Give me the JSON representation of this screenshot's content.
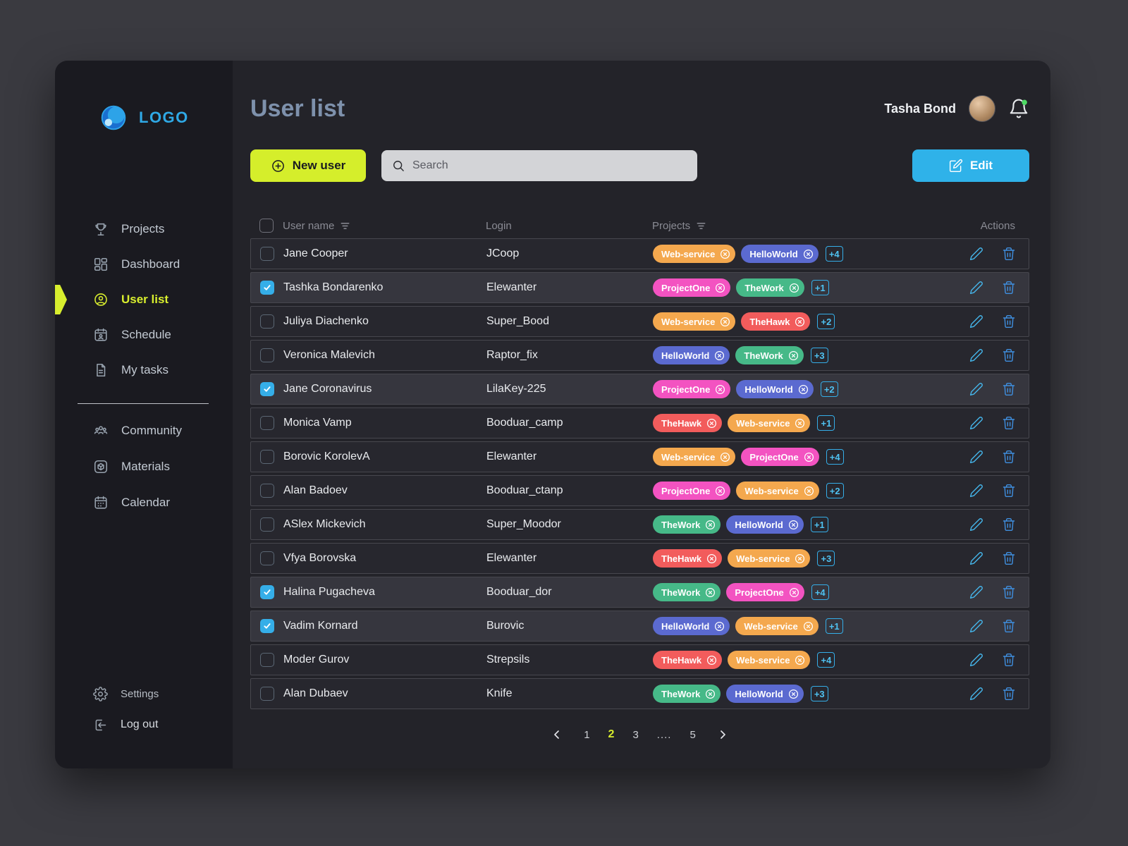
{
  "colors": {
    "accent_lime": "#d8ee2e",
    "accent_cyan": "#2fb2e9",
    "notification_dot": "#4ed964"
  },
  "sidebar": {
    "logo_text": "LOGO",
    "items": [
      {
        "label": "Projects",
        "icon": "trophy-icon"
      },
      {
        "label": "Dashboard",
        "icon": "dashboard-icon"
      },
      {
        "label": "User list",
        "icon": "user-icon",
        "active": true
      },
      {
        "label": "Schedule",
        "icon": "schedule-icon"
      },
      {
        "label": "My tasks",
        "icon": "tasks-icon"
      }
    ],
    "secondary": [
      {
        "label": "Community",
        "icon": "community-icon"
      },
      {
        "label": "Materials",
        "icon": "materials-icon"
      },
      {
        "label": "Calendar",
        "icon": "calendar-icon"
      }
    ],
    "footer": [
      {
        "label": "Settings",
        "icon": "gear-icon"
      },
      {
        "label": "Log out",
        "icon": "logout-icon"
      }
    ]
  },
  "header": {
    "title": "User list",
    "user_name": "Tasha Bond"
  },
  "toolbar": {
    "new_user": "New user",
    "search_placeholder": "Search",
    "edit": "Edit"
  },
  "table": {
    "columns": {
      "name": "User name",
      "login": "Login",
      "projects": "Projects",
      "actions": "Actions"
    },
    "tag_colors": {
      "Web-service": "#f4a84e",
      "HelloWorld": "#5b6ad0",
      "ProjectOne": "#f353c1",
      "TheWork": "#46b988",
      "TheHawk": "#f25c5c"
    },
    "rows": [
      {
        "name": "Jane Cooper",
        "login": "JCoop",
        "checked": false,
        "tags": [
          "Web-service",
          "HelloWorld"
        ],
        "more": "+4"
      },
      {
        "name": "Tashka Bondarenko",
        "login": "Elewanter",
        "checked": true,
        "tags": [
          "ProjectOne",
          "TheWork"
        ],
        "more": "+1"
      },
      {
        "name": "Juliya Diachenko",
        "login": "Super_Bood",
        "checked": false,
        "tags": [
          "Web-service",
          "TheHawk"
        ],
        "more": "+2"
      },
      {
        "name": "Veronica Malevich",
        "login": "Raptor_fix",
        "checked": false,
        "tags": [
          "HelloWorld",
          "TheWork"
        ],
        "more": "+3"
      },
      {
        "name": "Jane Coronavirus",
        "login": "LilaKey-225",
        "checked": true,
        "tags": [
          "ProjectOne",
          "HelloWorld"
        ],
        "more": "+2"
      },
      {
        "name": "Monica Vamp",
        "login": "Booduar_camp",
        "checked": false,
        "tags": [
          "TheHawk",
          "Web-service"
        ],
        "more": "+1"
      },
      {
        "name": "Borovic KorolevA",
        "login": "Elewanter",
        "checked": false,
        "tags": [
          "Web-service",
          "ProjectOne"
        ],
        "more": "+4"
      },
      {
        "name": "Alan Badoev",
        "login": "Booduar_ctanp",
        "checked": false,
        "tags": [
          "ProjectOne",
          "Web-service"
        ],
        "more": "+2"
      },
      {
        "name": "ASlex Mickevich",
        "login": "Super_Moodor",
        "checked": false,
        "tags": [
          "TheWork",
          "HelloWorld"
        ],
        "more": "+1"
      },
      {
        "name": "Vfya Borovska",
        "login": "Elewanter",
        "checked": false,
        "tags": [
          "TheHawk",
          "Web-service"
        ],
        "more": "+3"
      },
      {
        "name": "Halina Pugacheva",
        "login": "Booduar_dor",
        "checked": true,
        "tags": [
          "TheWork",
          "ProjectOne"
        ],
        "more": "+4"
      },
      {
        "name": "Vadim Kornard",
        "login": "Burovic",
        "checked": true,
        "tags": [
          "HelloWorld",
          "Web-service"
        ],
        "more": "+1"
      },
      {
        "name": "Moder Gurov",
        "login": "Strepsils",
        "checked": false,
        "tags": [
          "TheHawk",
          "Web-service"
        ],
        "more": "+4"
      },
      {
        "name": "Alan Dubaev",
        "login": "Knife",
        "checked": false,
        "tags": [
          "TheWork",
          "HelloWorld"
        ],
        "more": "+3"
      }
    ]
  },
  "pagination": {
    "pages": [
      "1",
      "2",
      "3",
      "....",
      "5"
    ],
    "active": "2"
  }
}
